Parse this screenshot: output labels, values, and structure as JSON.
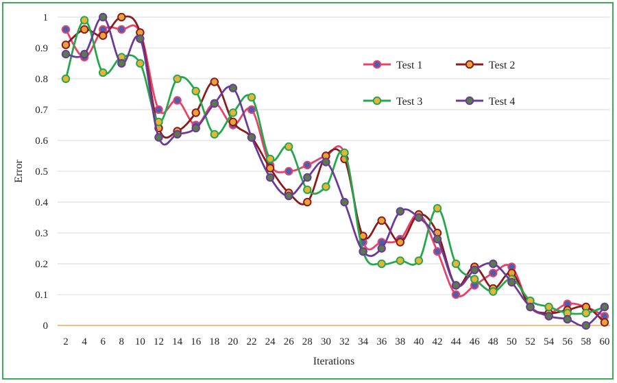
{
  "chart_data": {
    "type": "line",
    "xlabel": "Iterations",
    "ylabel": "Error",
    "ylim": [
      0,
      1
    ],
    "yticks": [
      "0",
      "0.1",
      "0.2",
      "0.3",
      "0.4",
      "0.5",
      "0.6",
      "0.7",
      "0.8",
      "0.9",
      "1"
    ],
    "x": [
      2,
      4,
      6,
      8,
      10,
      12,
      14,
      16,
      18,
      20,
      22,
      24,
      26,
      28,
      30,
      32,
      34,
      36,
      38,
      40,
      42,
      44,
      46,
      48,
      50,
      52,
      54,
      56,
      58,
      60
    ],
    "grid": "horizontal",
    "legend_position": "top-right",
    "series": [
      {
        "name": "Test 1",
        "line_color": "#e8416a",
        "marker_color": "#4a5fb0",
        "values": [
          0.96,
          0.87,
          0.96,
          0.96,
          0.95,
          0.7,
          0.73,
          0.65,
          0.72,
          0.65,
          0.7,
          0.52,
          0.5,
          0.52,
          0.55,
          0.56,
          0.27,
          0.27,
          0.28,
          0.36,
          0.24,
          0.1,
          0.13,
          0.17,
          0.19,
          0.06,
          0.04,
          0.07,
          0.06,
          0.03
        ]
      },
      {
        "name": "Test 2",
        "line_color": "#8b1a1a",
        "marker_color": "#e8a33a",
        "values": [
          0.91,
          0.96,
          0.94,
          1.0,
          0.95,
          0.64,
          0.63,
          0.69,
          0.79,
          0.66,
          0.61,
          0.51,
          0.43,
          0.4,
          0.55,
          0.54,
          0.29,
          0.34,
          0.27,
          0.36,
          0.3,
          0.13,
          0.19,
          0.12,
          0.17,
          0.06,
          0.04,
          0.05,
          0.06,
          0.01
        ]
      },
      {
        "name": "Test 3",
        "line_color": "#22a84a",
        "marker_color": "#e8b33a",
        "values": [
          0.8,
          0.99,
          0.82,
          0.87,
          0.85,
          0.66,
          0.8,
          0.76,
          0.62,
          0.69,
          0.74,
          0.54,
          0.58,
          0.44,
          0.45,
          0.56,
          0.24,
          0.2,
          0.21,
          0.21,
          0.38,
          0.2,
          0.15,
          0.11,
          0.15,
          0.08,
          0.06,
          0.04,
          0.04,
          0.06
        ]
      },
      {
        "name": "Test 4",
        "line_color": "#6a3a9a",
        "marker_color": "#5a7a4a",
        "values": [
          0.88,
          0.88,
          1.0,
          0.85,
          0.93,
          0.61,
          0.62,
          0.64,
          0.72,
          0.77,
          0.61,
          0.48,
          0.42,
          0.48,
          0.53,
          0.4,
          0.24,
          0.25,
          0.37,
          0.35,
          0.28,
          0.13,
          0.18,
          0.2,
          0.14,
          0.06,
          0.03,
          0.02,
          0.0,
          0.06
        ]
      }
    ]
  }
}
